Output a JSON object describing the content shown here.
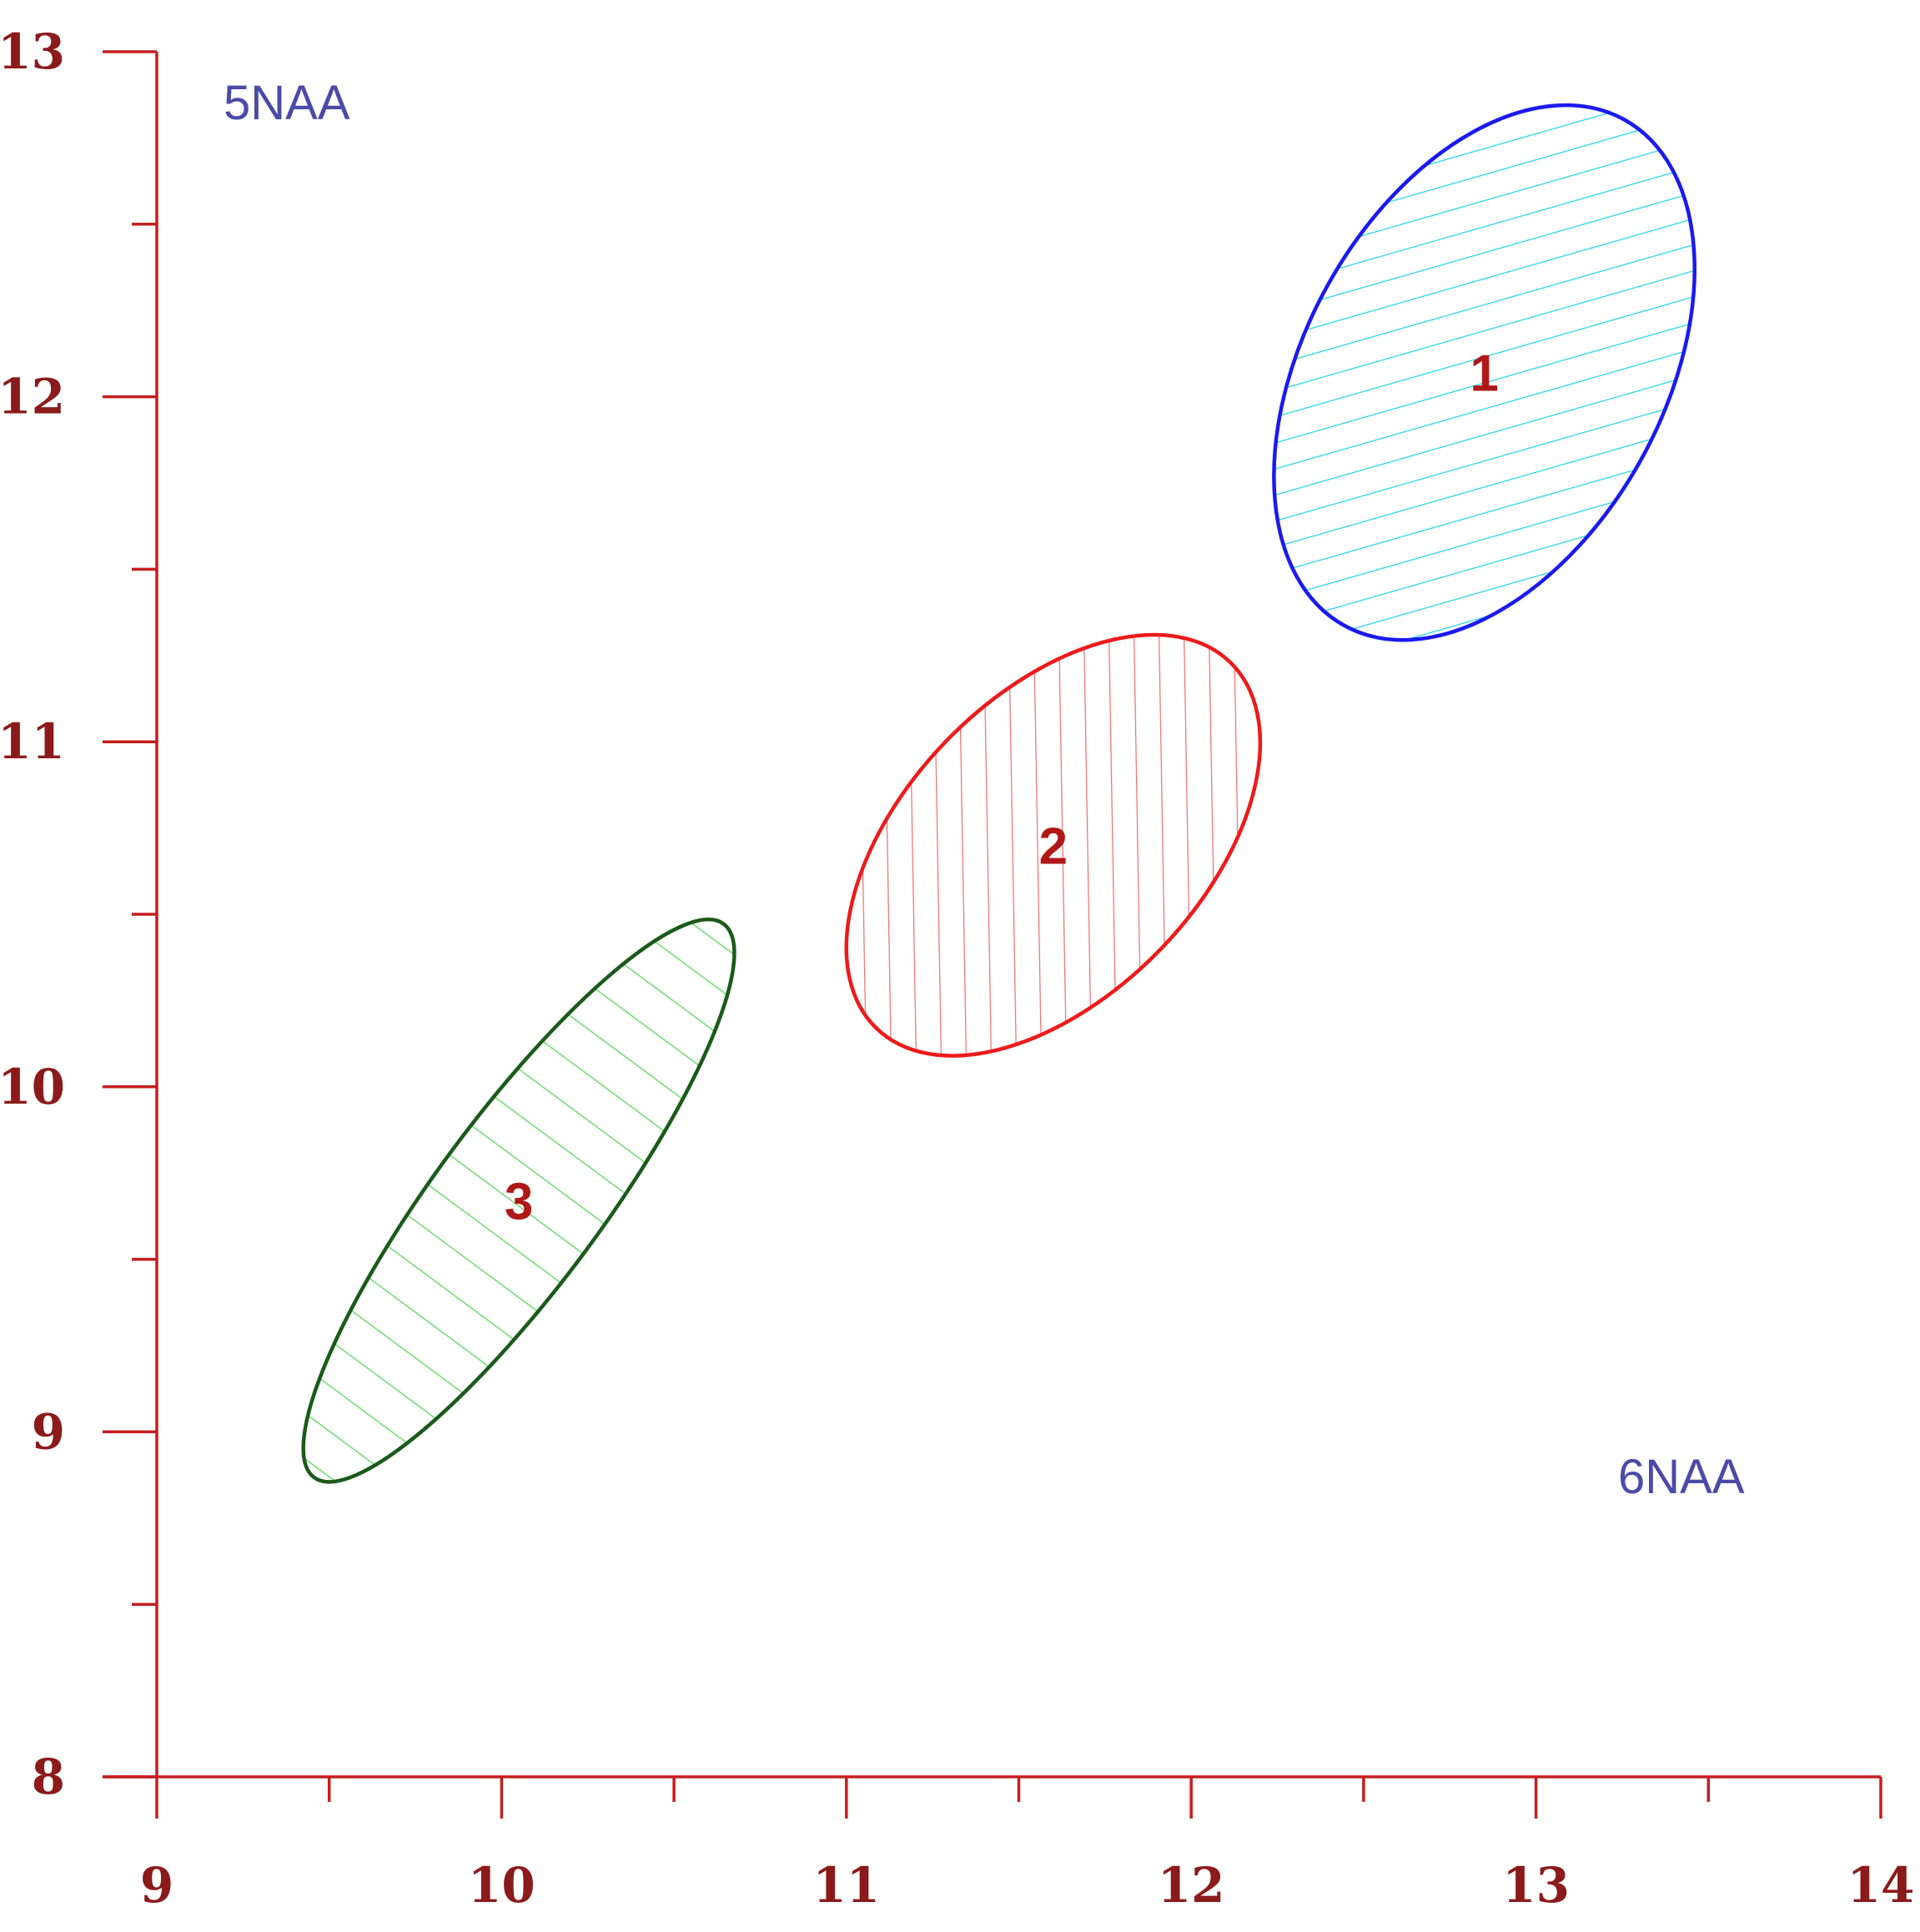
{
  "chart_data": {
    "type": "scatter",
    "title": "",
    "xlabel": "6NAA",
    "ylabel": "5NAA",
    "xlim": [
      9,
      14
    ],
    "ylim": [
      8,
      13
    ],
    "x_ticks": [
      "9",
      "10",
      "11",
      "12",
      "13",
      "14"
    ],
    "y_ticks": [
      "8",
      "9",
      "10",
      "11",
      "12",
      "13"
    ],
    "grid": false,
    "axis_color": "#c41e1e",
    "tick_label_color": "#8b1a1a",
    "corner_label_color": "#4a4aa8",
    "regions": [
      {
        "label": "1",
        "shape": "ellipse",
        "center": [
          12.85,
          12.07
        ],
        "x_range": [
          12.23,
          13.45
        ],
        "y_range": [
          11.3,
          12.85
        ],
        "edge_color": "#1a1aee",
        "hatch_color": "#22d4e8",
        "hatch": "diagonal"
      },
      {
        "label": "2",
        "shape": "ellipse",
        "center": [
          11.6,
          10.7
        ],
        "x_range": [
          11.05,
          12.25
        ],
        "y_range": [
          10.02,
          11.24
        ],
        "edge_color": "#ee1a1a",
        "hatch_color": "#f07070",
        "hatch": "diagonal"
      },
      {
        "label": "3",
        "shape": "ellipse",
        "center": [
          10.05,
          9.67
        ],
        "x_range": [
          9.45,
          10.7
        ],
        "y_range": [
          8.86,
          10.49
        ],
        "edge_color": "#1a5a1a",
        "hatch_color": "#6fdc6f",
        "hatch": "vertical"
      }
    ]
  }
}
